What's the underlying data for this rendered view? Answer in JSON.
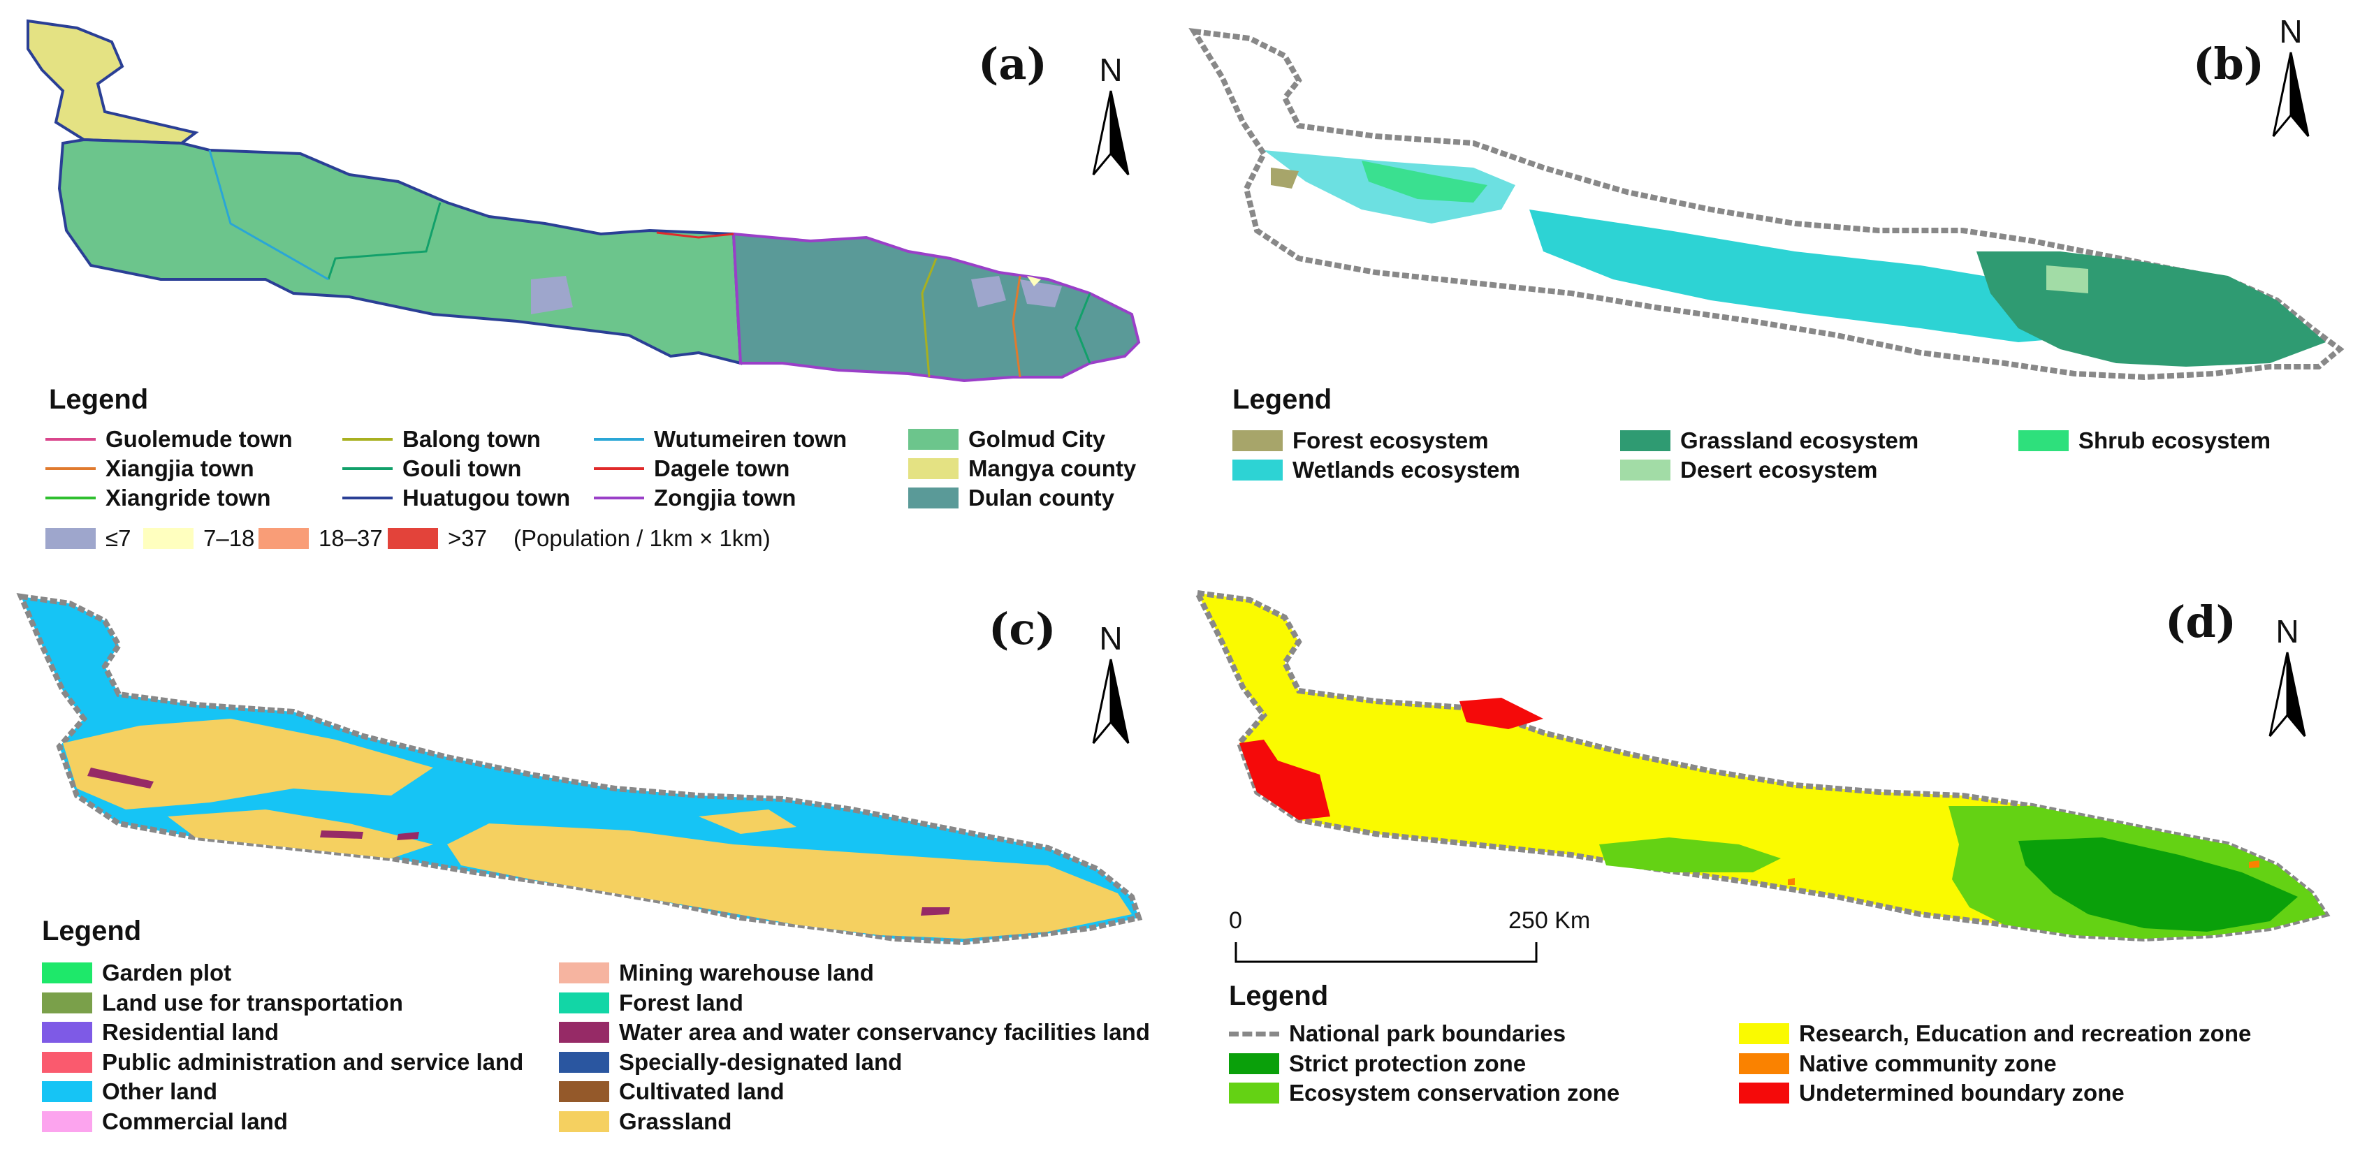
{
  "panels": {
    "a": {
      "label": "(a)",
      "north": "N",
      "legend_title": "Legend",
      "lines": [
        {
          "label": "Guolemude town",
          "color": "#d9468c"
        },
        {
          "label": "Xiangjia town",
          "color": "#e07a2e"
        },
        {
          "label": "Xiangride town",
          "color": "#2fbf2f"
        },
        {
          "label": "Balong town",
          "color": "#a8b020"
        },
        {
          "label": "Gouli town",
          "color": "#12a06a"
        },
        {
          "label": "Huatugou town",
          "color": "#2a3f95"
        },
        {
          "label": "Wutumeiren town",
          "color": "#2aa6d6"
        },
        {
          "label": "Dagele town",
          "color": "#e02a2a"
        },
        {
          "label": "Zongjia town",
          "color": "#9a3fc8"
        }
      ],
      "fills": [
        {
          "label": "Golmud City",
          "color": "#6cc58c"
        },
        {
          "label": "Mangya county",
          "color": "#e4e283"
        },
        {
          "label": "Dulan county",
          "color": "#5a9a98"
        }
      ],
      "population": [
        {
          "label": "≤7",
          "color": "#9ea6cc"
        },
        {
          "label": "7–18",
          "color": "#ffffbf"
        },
        {
          "label": "18–37",
          "color": "#f99d77"
        },
        {
          "label": ">37",
          "color": "#e3433a"
        }
      ],
      "population_unit": "(Population / 1km × 1km)"
    },
    "b": {
      "label": "(b)",
      "north": "N",
      "legend_title": "Legend",
      "items": [
        {
          "label": "Forest ecosystem",
          "color": "#a7a56a"
        },
        {
          "label": "Wetlands ecosystem",
          "color": "#2dd3d4"
        },
        {
          "label": "Grassland ecosystem",
          "color": "#2f9b72"
        },
        {
          "label": "Desert ecosystem",
          "color": "#a2dca6"
        },
        {
          "label": "Shrub ecosystem",
          "color": "#2ee07c"
        }
      ]
    },
    "c": {
      "label": "(c)",
      "north": "N",
      "legend_title": "Legend",
      "items": [
        {
          "label": "Garden plot",
          "color": "#1ee86a"
        },
        {
          "label": "Land use for transportation",
          "color": "#7aa04a"
        },
        {
          "label": "Residential land",
          "color": "#7e5ae6"
        },
        {
          "label": "Public administration and service land",
          "color": "#fa5a6e"
        },
        {
          "label": "Other land",
          "color": "#16c4f5"
        },
        {
          "label": "Commercial land",
          "color": "#fca4ee"
        },
        {
          "label": "Mining warehouse land",
          "color": "#f6b4a0"
        },
        {
          "label": "Forest land",
          "color": "#12d6a6"
        },
        {
          "label": "Water area and water conservancy facilities land",
          "color": "#962a66"
        },
        {
          "label": "Specially-designated land",
          "color": "#2a56a0"
        },
        {
          "label": "Cultivated land",
          "color": "#94592a"
        },
        {
          "label": "Grassland",
          "color": "#f5d060"
        }
      ]
    },
    "d": {
      "label": "(d)",
      "north": "N",
      "legend_title": "Legend",
      "scale_start": "0",
      "scale_end": "250 Km",
      "items": [
        {
          "label": "National park boundaries",
          "color": "#888888"
        },
        {
          "label": "Strict protection zone",
          "color": "#0aa00a"
        },
        {
          "label": "Ecosystem conservation zone",
          "color": "#64d214"
        },
        {
          "label": "Research, Education and recreation zone",
          "color": "#fafa00"
        },
        {
          "label": "Native community zone",
          "color": "#fa8200"
        },
        {
          "label": "Undetermined boundary zone",
          "color": "#f50a0a"
        }
      ]
    }
  }
}
